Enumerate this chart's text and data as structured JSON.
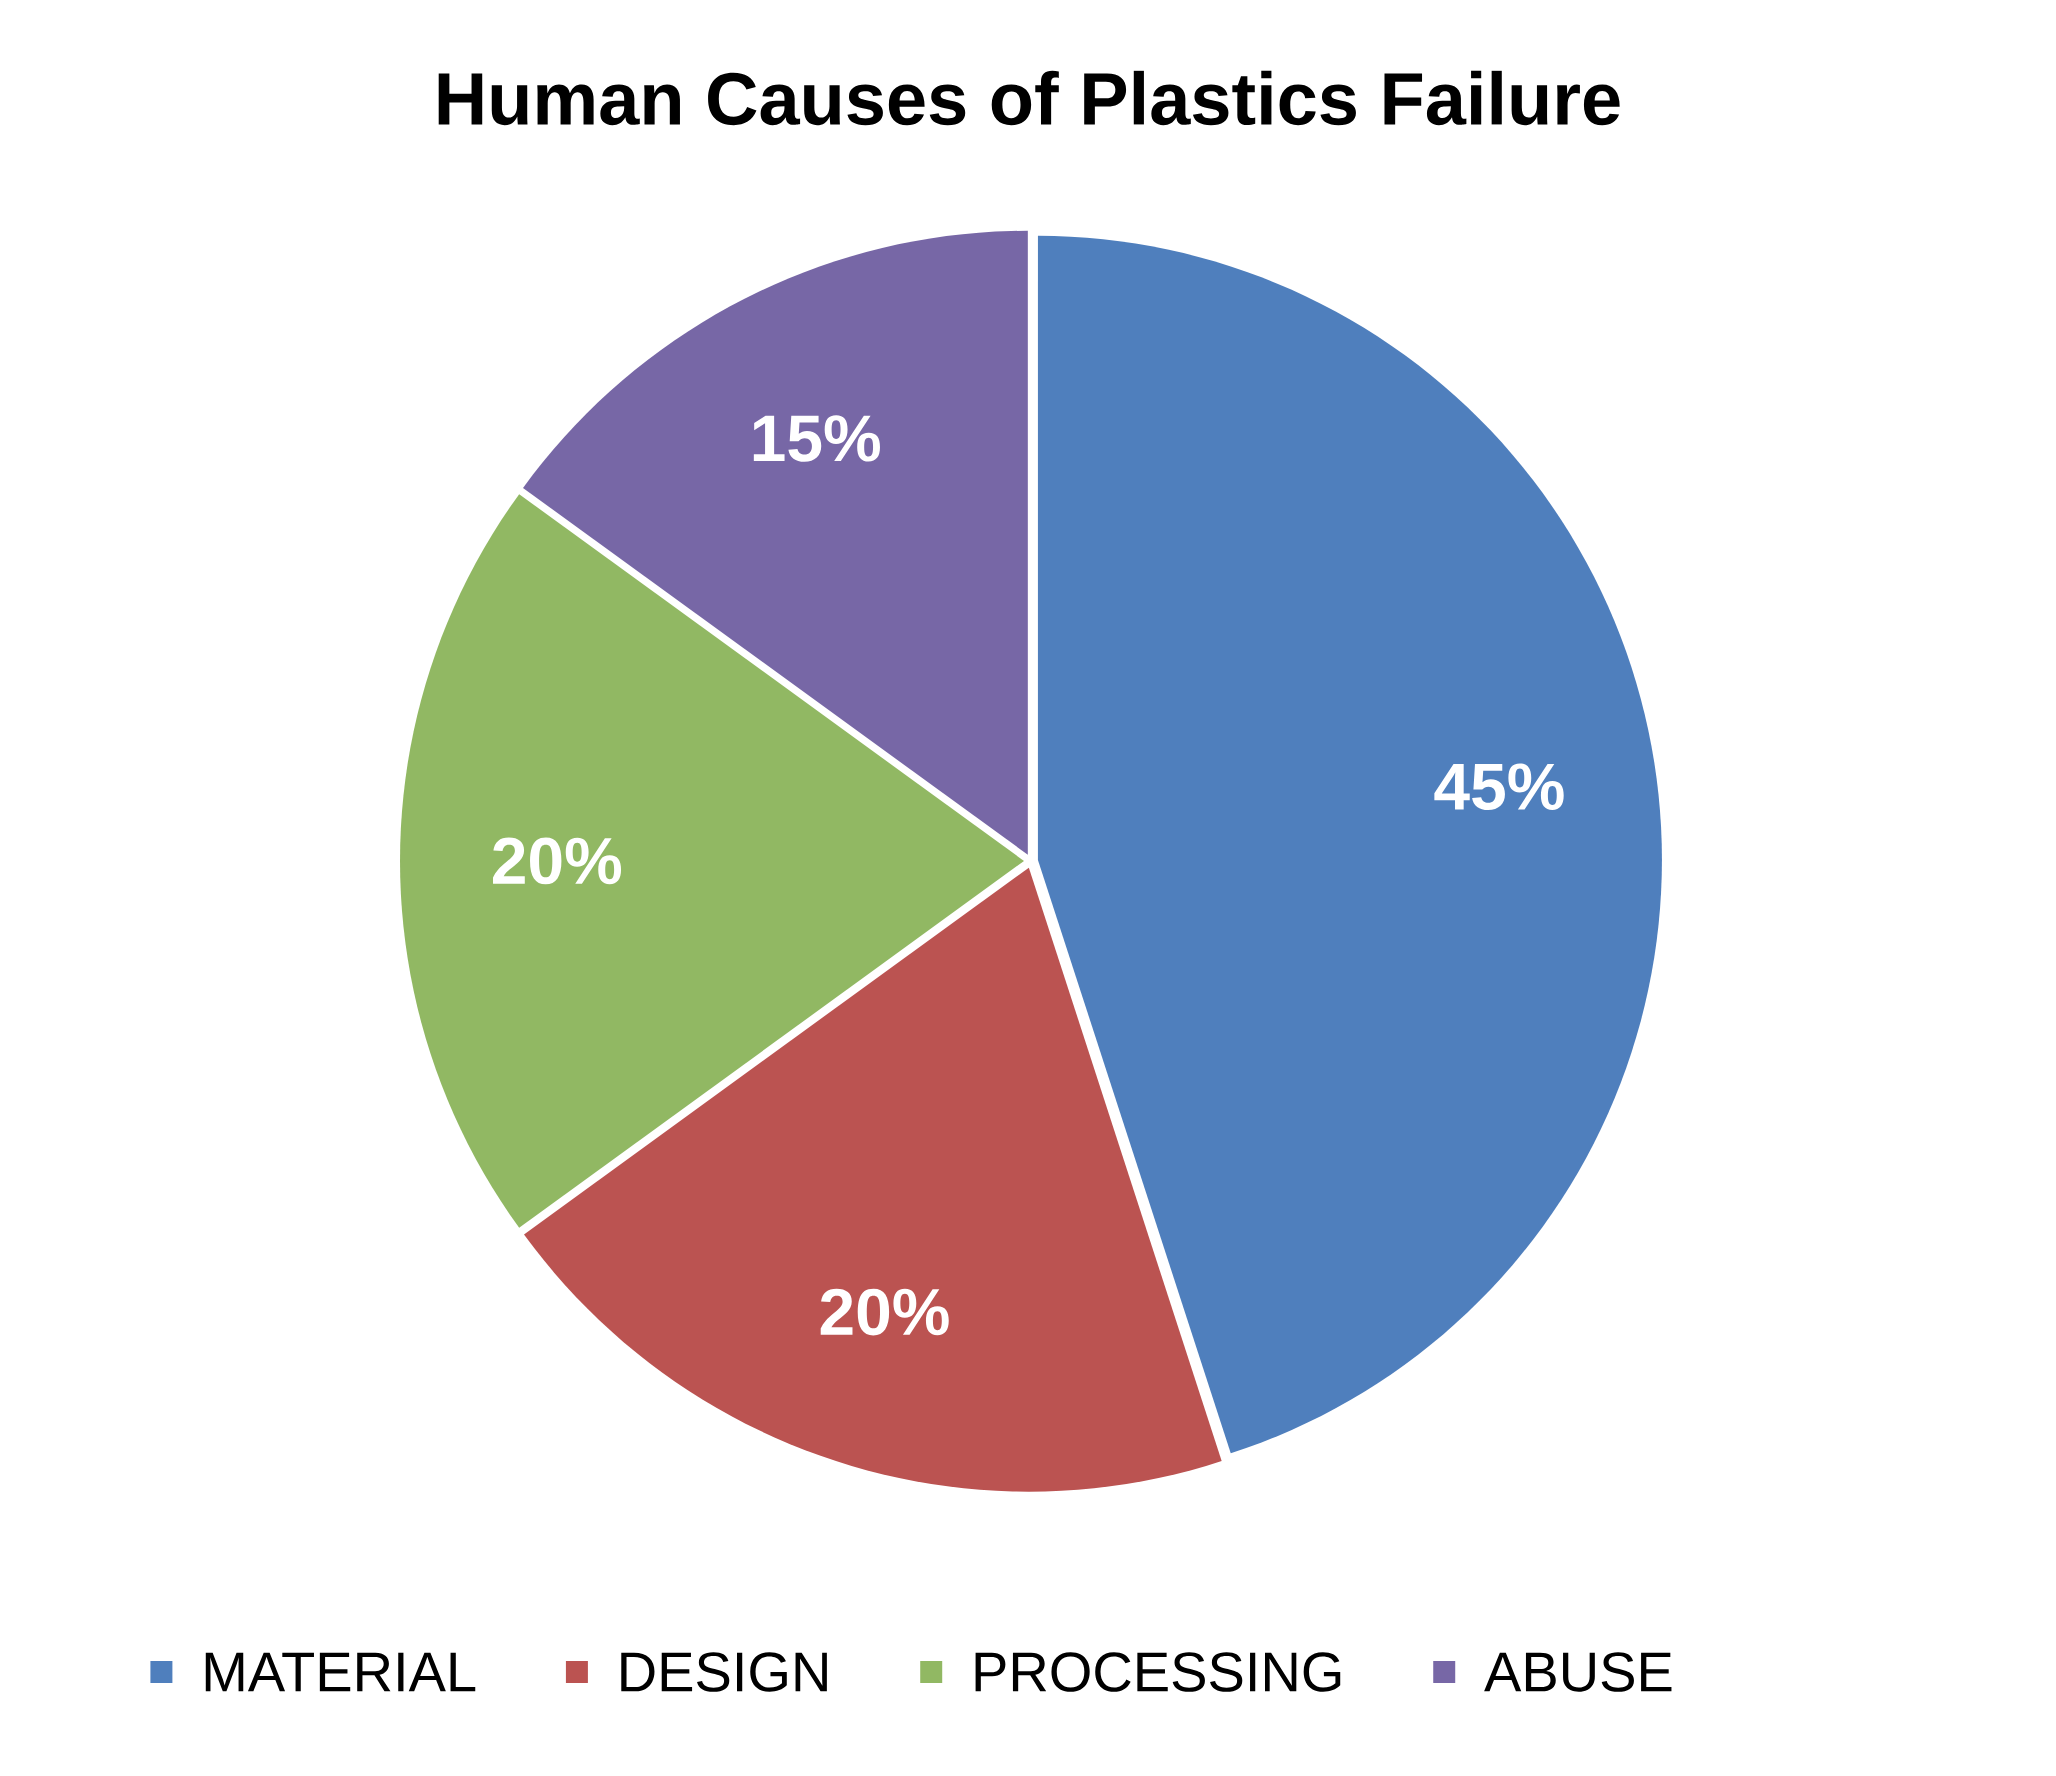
{
  "chart_data": {
    "type": "pie",
    "title": "Human Causes of Plastics Failure",
    "categories": [
      "MATERIAL",
      "DESIGN",
      "PROCESSING",
      "ABUSE"
    ],
    "values": [
      45,
      20,
      20,
      15
    ],
    "colors": [
      "#4f7fbd",
      "#bb5351",
      "#91b863",
      "#7767a6"
    ],
    "value_labels": [
      "45%",
      "20%",
      "20%",
      "15%"
    ],
    "legend": "bottom"
  }
}
